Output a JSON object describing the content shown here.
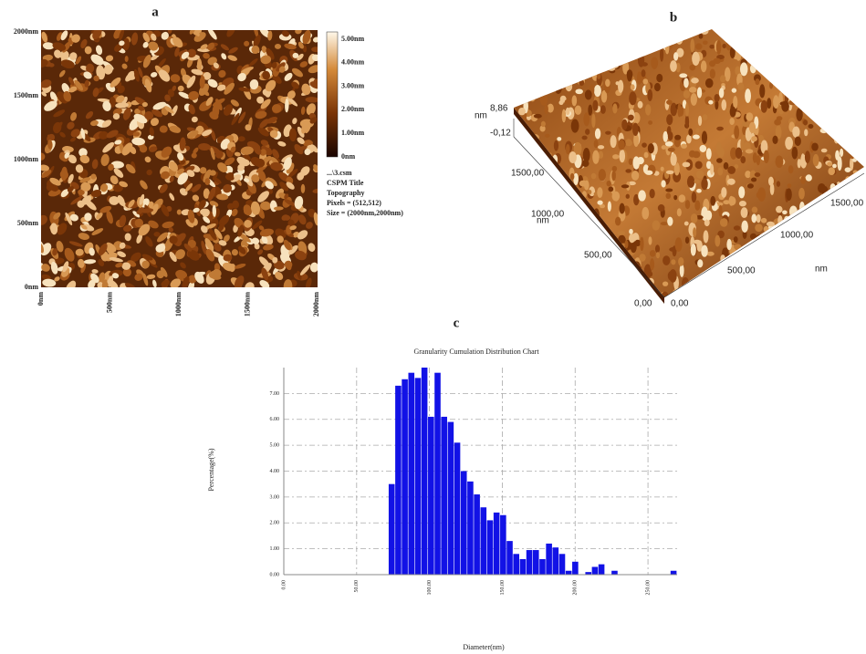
{
  "panel_a": {
    "label": "a",
    "y_ticks": [
      "2000nm",
      "1500nm",
      "1000nm",
      "500nm",
      "0nm"
    ],
    "x_ticks": [
      "0nm",
      "500nm",
      "1000nm",
      "1500nm",
      "2000nm"
    ],
    "colorbar_ticks": [
      "5.00nm",
      "4.00nm",
      "3.00nm",
      "2.00nm",
      "1.00nm",
      "0nm"
    ],
    "info": [
      "...\\3.csm",
      "CSPM Title",
      "Topography",
      "Pixels = (512,512)",
      "Size = (2000nm,2000nm)"
    ]
  },
  "panel_b": {
    "label": "b",
    "z_unit": "nm",
    "z_max": "8,86",
    "z_min": "-0,12",
    "y_unit": "nm",
    "y_ticks": [
      "1500,00",
      "1000,00",
      "500,00",
      "0,00"
    ],
    "x_unit": "nm",
    "x_ticks": [
      "0,00",
      "500,00",
      "1000,00",
      "1500,00"
    ]
  },
  "chart_data": {
    "type": "histogram",
    "panel_label": "c",
    "title": "Granularity Cumulation Distribution  Chart",
    "x_label": "Diameter(nm)",
    "y_label": "Percentage(%)",
    "color": "#1212e6",
    "grid": true,
    "bins": [
      72,
      76.5,
      81,
      85.5,
      90,
      94.5,
      99,
      103.5,
      108,
      112.5,
      117,
      121.5,
      126,
      130.5,
      135,
      139.5,
      144,
      148.5,
      153,
      157.5,
      162,
      166.5,
      171,
      175.5,
      180,
      184.5,
      189,
      193.5,
      198,
      202.5,
      207,
      211.5,
      216,
      220.5,
      225,
      229.5,
      234,
      238.5,
      243,
      247.5,
      252,
      256.5,
      261,
      265.5,
      270
    ],
    "values": [
      3.5,
      7.3,
      7.55,
      7.8,
      7.6,
      8.0,
      6.1,
      7.8,
      6.1,
      5.9,
      5.1,
      4.0,
      3.6,
      3.1,
      2.6,
      2.1,
      2.4,
      2.3,
      1.3,
      0.8,
      0.6,
      0.95,
      0.95,
      0.6,
      1.2,
      1.05,
      0.8,
      0.15,
      0.5,
      0,
      0.1,
      0.3,
      0.4,
      0,
      0.15,
      0,
      0,
      0,
      0,
      0,
      0,
      0,
      0,
      0.15
    ],
    "xlim": [
      0,
      270
    ],
    "ylim": [
      0,
      8
    ],
    "xticks": [
      {
        "value": 0,
        "label": "0.00"
      },
      {
        "value": 50,
        "label": "50.00"
      },
      {
        "value": 100,
        "label": "100.00"
      },
      {
        "value": 150,
        "label": "150.00"
      },
      {
        "value": 200,
        "label": "200.00"
      },
      {
        "value": 250,
        "label": "250.00"
      }
    ],
    "yticks": [
      {
        "value": 0,
        "label": "0.00"
      },
      {
        "value": 1,
        "label": "1.00"
      },
      {
        "value": 2,
        "label": "2.00"
      },
      {
        "value": 3,
        "label": "3.00"
      },
      {
        "value": 4,
        "label": "4.00"
      },
      {
        "value": 5,
        "label": "5.00"
      },
      {
        "value": 6,
        "label": "6.00"
      },
      {
        "value": 7,
        "label": "7.00"
      }
    ]
  }
}
